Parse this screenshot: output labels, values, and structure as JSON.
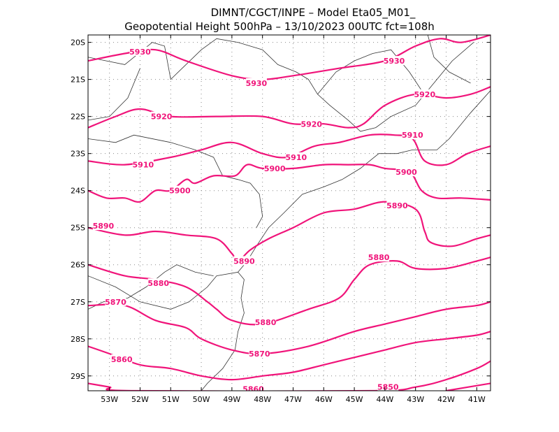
{
  "title": {
    "line1": "DIMNT/CGCT/INPE –  Model Eta05_M01_",
    "line2": "Geopotential Height 500hPa –  13/10/2023 00UTC fct=108h"
  },
  "colors": {
    "contour": "#f0147a",
    "coast": "#333333",
    "frame": "#000000"
  },
  "axes": {
    "lon_range": [
      -53.7,
      -40.55
    ],
    "lat_range": [
      -29.4,
      -19.8
    ],
    "lon_ticks": [
      {
        "value": -53,
        "label": "53W"
      },
      {
        "value": -52,
        "label": "52W"
      },
      {
        "value": -51,
        "label": "51W"
      },
      {
        "value": -50,
        "label": "50W"
      },
      {
        "value": -49,
        "label": "49W"
      },
      {
        "value": -48,
        "label": "48W"
      },
      {
        "value": -47,
        "label": "47W"
      },
      {
        "value": -46,
        "label": "46W"
      },
      {
        "value": -45,
        "label": "45W"
      },
      {
        "value": -44,
        "label": "44W"
      },
      {
        "value": -43,
        "label": "43W"
      },
      {
        "value": -42,
        "label": "42W"
      },
      {
        "value": -41,
        "label": "41W"
      }
    ],
    "lat_ticks": [
      {
        "value": -20,
        "label": "20S"
      },
      {
        "value": -21,
        "label": "21S"
      },
      {
        "value": -22,
        "label": "22S"
      },
      {
        "value": -23,
        "label": "23S"
      },
      {
        "value": -24,
        "label": "24S"
      },
      {
        "value": -25,
        "label": "25S"
      },
      {
        "value": -26,
        "label": "26S"
      },
      {
        "value": -27,
        "label": "27S"
      },
      {
        "value": -28,
        "label": "28S"
      },
      {
        "value": -29,
        "label": "29S"
      }
    ],
    "grid": "dotted"
  },
  "contours": [
    {
      "value": "5930",
      "points": [
        [
          -53.7,
          -20.5
        ],
        [
          -52.5,
          -20.3
        ],
        [
          -51.5,
          -20.2
        ],
        [
          -50.5,
          -20.5
        ],
        [
          -49,
          -20.9
        ],
        [
          -48,
          -21.0
        ],
        [
          -47,
          -20.9
        ],
        [
          -45.5,
          -20.7
        ],
        [
          -44,
          -20.5
        ],
        [
          -43,
          -20.1
        ],
        [
          -42.2,
          -19.9
        ],
        [
          -41.5,
          -20.0
        ],
        [
          -40.55,
          -19.8
        ]
      ],
      "labels": [
        [
          -52.0,
          -20.25
        ],
        [
          -48.2,
          -21.1
        ],
        [
          -43.7,
          -20.5
        ]
      ]
    },
    {
      "value": "5920",
      "points": [
        [
          -53.7,
          -22.3
        ],
        [
          -52.8,
          -22.0
        ],
        [
          -52,
          -21.8
        ],
        [
          -51,
          -22.0
        ],
        [
          -49.5,
          -22.0
        ],
        [
          -48,
          -22.0
        ],
        [
          -47,
          -22.2
        ],
        [
          -46,
          -22.2
        ],
        [
          -45.2,
          -22.3
        ],
        [
          -44.7,
          -22.2
        ],
        [
          -44,
          -21.7
        ],
        [
          -43,
          -21.4
        ],
        [
          -42,
          -21.5
        ],
        [
          -41.2,
          -21.4
        ],
        [
          -40.55,
          -21.2
        ]
      ],
      "labels": [
        [
          -51.3,
          -22.0
        ],
        [
          -46.4,
          -22.2
        ],
        [
          -42.7,
          -21.4
        ]
      ]
    },
    {
      "value": "5910",
      "points": [
        [
          -53.7,
          -23.2
        ],
        [
          -52.5,
          -23.3
        ],
        [
          -51,
          -23.1
        ],
        [
          -50,
          -22.9
        ],
        [
          -49,
          -22.7
        ],
        [
          -48,
          -23.0
        ],
        [
          -47.2,
          -23.1
        ],
        [
          -46.3,
          -22.8
        ],
        [
          -45.5,
          -22.7
        ],
        [
          -44.5,
          -22.5
        ],
        [
          -43.7,
          -22.5
        ],
        [
          -43.1,
          -22.6
        ],
        [
          -42.7,
          -23.2
        ],
        [
          -42,
          -23.3
        ],
        [
          -41.3,
          -23.0
        ],
        [
          -40.55,
          -22.8
        ]
      ],
      "labels": [
        [
          -51.9,
          -23.3
        ],
        [
          -46.9,
          -23.1
        ],
        [
          -43.1,
          -22.5
        ]
      ]
    },
    {
      "value": "5900",
      "points": [
        [
          -53.7,
          -24.0
        ],
        [
          -53.1,
          -24.2
        ],
        [
          -52.5,
          -24.2
        ],
        [
          -52.0,
          -24.3
        ],
        [
          -51.5,
          -24.0
        ],
        [
          -51.0,
          -24.0
        ],
        [
          -50.5,
          -23.7
        ],
        [
          -50.2,
          -23.8
        ],
        [
          -49.6,
          -23.6
        ],
        [
          -48.9,
          -23.6
        ],
        [
          -48.5,
          -23.3
        ],
        [
          -48.0,
          -23.4
        ],
        [
          -47.0,
          -23.4
        ],
        [
          -46,
          -23.3
        ],
        [
          -45.2,
          -23.3
        ],
        [
          -44.5,
          -23.3
        ],
        [
          -44.0,
          -23.4
        ],
        [
          -43.2,
          -23.5
        ],
        [
          -42.8,
          -24.0
        ],
        [
          -42.3,
          -24.2
        ],
        [
          -41.5,
          -24.2
        ],
        [
          -40.55,
          -24.25
        ]
      ],
      "labels": [
        [
          -50.7,
          -24.0
        ],
        [
          -47.6,
          -23.4
        ],
        [
          -43.3,
          -23.5
        ]
      ]
    },
    {
      "value": "5890",
      "points": [
        [
          -53.7,
          -25.0
        ],
        [
          -52.5,
          -25.2
        ],
        [
          -51.5,
          -25.1
        ],
        [
          -50.5,
          -25.2
        ],
        [
          -49.5,
          -25.3
        ],
        [
          -49.0,
          -25.7
        ],
        [
          -48.8,
          -25.9
        ],
        [
          -48.4,
          -25.6
        ],
        [
          -47.8,
          -25.3
        ],
        [
          -47,
          -25.0
        ],
        [
          -46,
          -24.6
        ],
        [
          -45,
          -24.5
        ],
        [
          -44,
          -24.3
        ],
        [
          -43,
          -24.5
        ],
        [
          -42.7,
          -25.1
        ],
        [
          -42.5,
          -25.4
        ],
        [
          -41.8,
          -25.5
        ],
        [
          -41.0,
          -25.3
        ],
        [
          -40.55,
          -25.2
        ]
      ],
      "labels": [
        [
          -53.2,
          -24.95
        ],
        [
          -48.6,
          -25.9
        ],
        [
          -43.6,
          -24.4
        ]
      ]
    },
    {
      "value": "5880",
      "points": [
        [
          -53.7,
          -26.0
        ],
        [
          -52.5,
          -26.3
        ],
        [
          -51.5,
          -26.4
        ],
        [
          -50.5,
          -26.6
        ],
        [
          -49.8,
          -27.0
        ],
        [
          -49.5,
          -27.2
        ],
        [
          -49,
          -27.5
        ],
        [
          -48,
          -27.6
        ],
        [
          -46.5,
          -27.2
        ],
        [
          -45.5,
          -26.9
        ],
        [
          -45,
          -26.4
        ],
        [
          -44.5,
          -26.0
        ],
        [
          -43.6,
          -25.9
        ],
        [
          -43,
          -26.1
        ],
        [
          -42,
          -26.1
        ],
        [
          -41,
          -25.9
        ],
        [
          -40.55,
          -25.8
        ]
      ],
      "labels": [
        [
          -51.4,
          -26.5
        ],
        [
          -47.9,
          -27.55
        ],
        [
          -44.2,
          -25.8
        ]
      ]
    },
    {
      "value": "5870",
      "points": [
        [
          -53.7,
          -27.1
        ],
        [
          -52.5,
          -27.1
        ],
        [
          -51.5,
          -27.5
        ],
        [
          -50.5,
          -27.7
        ],
        [
          -50,
          -28.0
        ],
        [
          -49,
          -28.3
        ],
        [
          -48,
          -28.4
        ],
        [
          -46.5,
          -28.2
        ],
        [
          -45,
          -27.8
        ],
        [
          -44,
          -27.6
        ],
        [
          -43,
          -27.4
        ],
        [
          -42,
          -27.2
        ],
        [
          -41,
          -27.1
        ],
        [
          -40.55,
          -27.0
        ]
      ],
      "labels": [
        [
          -52.8,
          -27.0
        ],
        [
          -48.1,
          -28.4
        ]
      ]
    },
    {
      "value": "5860",
      "points": [
        [
          -53.7,
          -28.2
        ],
        [
          -53,
          -28.4
        ],
        [
          -52,
          -28.7
        ],
        [
          -51,
          -28.8
        ],
        [
          -50,
          -29.0
        ],
        [
          -49,
          -29.1
        ],
        [
          -48,
          -29.0
        ],
        [
          -47,
          -28.9
        ],
        [
          -46,
          -28.7
        ],
        [
          -45,
          -28.5
        ],
        [
          -44,
          -28.3
        ],
        [
          -43,
          -28.1
        ],
        [
          -42,
          -28.0
        ],
        [
          -41,
          -27.9
        ],
        [
          -40.55,
          -27.8
        ]
      ],
      "labels": [
        [
          -52.6,
          -28.55
        ],
        [
          -48.3,
          -29.35
        ]
      ]
    },
    {
      "value": "5850",
      "points": [
        [
          -53.7,
          -29.2
        ],
        [
          -53,
          -29.3
        ],
        [
          -52.3,
          -29.4
        ],
        [
          -44.5,
          -29.4
        ],
        [
          -43,
          -29.3
        ],
        [
          -42,
          -29.1
        ],
        [
          -41,
          -28.8
        ],
        [
          -40.55,
          -28.6
        ]
      ],
      "labels": [
        [
          -43.9,
          -29.3
        ]
      ]
    },
    {
      "value": "",
      "points": [
        [
          -42.0,
          -29.4
        ],
        [
          -40.55,
          -29.2
        ]
      ],
      "labels": []
    }
  ],
  "coastlines": [
    {
      "name": "coast-main",
      "points": [
        [
          -53.7,
          -26.3
        ],
        [
          -52.8,
          -26.6
        ],
        [
          -52.0,
          -27.0
        ],
        [
          -51.0,
          -27.2
        ],
        [
          -50.4,
          -27.0
        ],
        [
          -49.8,
          -26.6
        ],
        [
          -49.5,
          -26.3
        ],
        [
          -48.8,
          -26.2
        ],
        [
          -48.6,
          -26.4
        ],
        [
          -48.7,
          -26.9
        ],
        [
          -48.6,
          -27.3
        ],
        [
          -48.8,
          -27.8
        ],
        [
          -48.9,
          -28.3
        ],
        [
          -49.3,
          -28.8
        ],
        [
          -49.8,
          -29.2
        ],
        [
          -50.0,
          -29.4
        ]
      ]
    },
    {
      "name": "coast-sp",
      "points": [
        [
          -48.8,
          -26.2
        ],
        [
          -48.5,
          -25.9
        ],
        [
          -48.2,
          -25.5
        ],
        [
          -47.8,
          -25.0
        ],
        [
          -47.3,
          -24.6
        ],
        [
          -46.7,
          -24.1
        ],
        [
          -46.0,
          -23.9
        ],
        [
          -45.4,
          -23.7
        ],
        [
          -44.8,
          -23.4
        ],
        [
          -44.2,
          -23.0
        ],
        [
          -43.6,
          -23.0
        ],
        [
          -43.1,
          -22.9
        ],
        [
          -42.3,
          -22.9
        ],
        [
          -41.9,
          -22.6
        ],
        [
          -41.2,
          -21.9
        ],
        [
          -40.55,
          -21.3
        ]
      ]
    },
    {
      "name": "border-1",
      "points": [
        [
          -53.7,
          -20.4
        ],
        [
          -52.5,
          -20.6
        ],
        [
          -51.6,
          -20.0
        ],
        [
          -51.2,
          -20.1
        ],
        [
          -51.0,
          -21.0
        ],
        [
          -50.0,
          -20.2
        ],
        [
          -49.5,
          -19.9
        ],
        [
          -48.8,
          -20.0
        ],
        [
          -48.0,
          -20.2
        ],
        [
          -47.5,
          -20.6
        ],
        [
          -46.9,
          -20.8
        ],
        [
          -46.5,
          -21.0
        ],
        [
          -46.2,
          -21.4
        ],
        [
          -45.8,
          -21.7
        ],
        [
          -45.2,
          -22.1
        ],
        [
          -44.8,
          -22.4
        ],
        [
          -44.3,
          -22.3
        ],
        [
          -43.8,
          -22.0
        ],
        [
          -43.0,
          -21.7
        ],
        [
          -42.3,
          -21.0
        ],
        [
          -41.8,
          -20.5
        ],
        [
          -41.1,
          -20.0
        ]
      ]
    },
    {
      "name": "border-2",
      "points": [
        [
          -53.7,
          -22.6
        ],
        [
          -52.8,
          -22.7
        ],
        [
          -52.2,
          -22.5
        ],
        [
          -51.0,
          -22.7
        ],
        [
          -50.2,
          -22.9
        ],
        [
          -49.6,
          -23.1
        ],
        [
          -49.3,
          -23.6
        ],
        [
          -48.8,
          -23.7
        ],
        [
          -48.4,
          -23.8
        ],
        [
          -48.1,
          -24.1
        ],
        [
          -48.0,
          -24.7
        ],
        [
          -48.2,
          -25.0
        ]
      ]
    },
    {
      "name": "border-3",
      "points": [
        [
          -53.7,
          -27.2
        ],
        [
          -53.2,
          -27.0
        ],
        [
          -52.4,
          -26.9
        ],
        [
          -51.8,
          -26.6
        ],
        [
          -51.2,
          -26.2
        ],
        [
          -50.8,
          -26.0
        ],
        [
          -50.2,
          -26.2
        ],
        [
          -49.6,
          -26.3
        ]
      ]
    },
    {
      "name": "border-4",
      "points": [
        [
          -52.0,
          -20.7
        ],
        [
          -52.4,
          -21.5
        ],
        [
          -53.0,
          -22.0
        ],
        [
          -53.7,
          -22.1
        ]
      ]
    },
    {
      "name": "border-5",
      "points": [
        [
          -46.2,
          -21.4
        ],
        [
          -45.6,
          -20.8
        ],
        [
          -45.0,
          -20.5
        ],
        [
          -44.4,
          -20.3
        ],
        [
          -43.8,
          -20.2
        ],
        [
          -43.2,
          -20.8
        ],
        [
          -42.8,
          -21.3
        ]
      ]
    },
    {
      "name": "border-6",
      "points": [
        [
          -42.6,
          -19.8
        ],
        [
          -42.4,
          -20.4
        ],
        [
          -41.9,
          -20.8
        ],
        [
          -41.2,
          -21.1
        ]
      ]
    }
  ]
}
